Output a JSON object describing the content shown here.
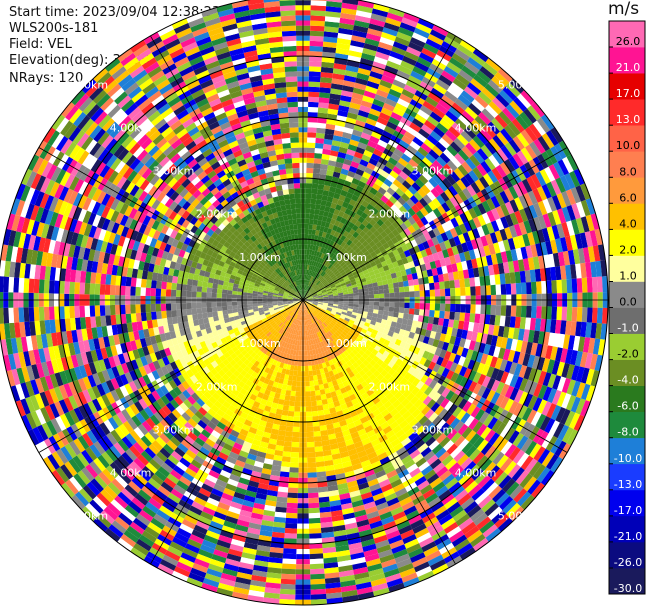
{
  "header": {
    "start_time": "Start time: 2023/09/04 12:38:23",
    "instrument": "WLS200s-181",
    "field": "Field: VEL",
    "elevation": "Elevation(deg): 35.30",
    "nrays": "NRays: 120"
  },
  "chart_data": {
    "type": "heatmap",
    "projection": "polar-ppi",
    "field": "VEL",
    "unit": "m/s",
    "nrays": 120,
    "elevation_deg": 35.3,
    "max_range_km": 5.0,
    "range_rings_km": [
      1.0,
      2.0,
      3.0,
      4.0,
      5.0
    ],
    "ring_labels": [
      "1.00km",
      "2.00km",
      "3.00km",
      "4.00km",
      "5.00km"
    ],
    "spoke_angles_deg": [
      0,
      30,
      60,
      90,
      120,
      150,
      180,
      210,
      240,
      270,
      300,
      330
    ],
    "colorbar": {
      "title": "m/s",
      "levels": [
        -30.0,
        -26.0,
        -21.0,
        -17.0,
        -13.0,
        -10.0,
        -8.0,
        -6.0,
        -4.0,
        -2.0,
        -1.0,
        0.0,
        1.0,
        2.0,
        4.0,
        6.0,
        8.0,
        10.0,
        13.0,
        17.0,
        21.0,
        26.0,
        30.0
      ],
      "tick_labels": [
        "-30.0",
        "-26.0",
        "-21.0",
        "-17.0",
        "-13.0",
        "-10.0",
        "-8.0",
        "-6.0",
        "-4.0",
        "-2.0",
        "-1.0",
        "0.0",
        "1.0",
        "2.0",
        "4.0",
        "6.0",
        "8.0",
        "10.0",
        "13.0",
        "17.0",
        "21.0",
        "26.0"
      ],
      "colors": [
        "#1a1a5c",
        "#0b0b80",
        "#0000b8",
        "#0000ee",
        "#1a3cff",
        "#1e7fd8",
        "#1e8a3c",
        "#2a7a1e",
        "#6b8e23",
        "#9acd32",
        "#6e6e6e",
        "#8a8a8a",
        "#ffff9e",
        "#ffff00",
        "#ffc000",
        "#ff9a3c",
        "#ff7f50",
        "#ff6347",
        "#ff2a2a",
        "#e60000",
        "#ff1493",
        "#ff69b4"
      ]
    },
    "noise_colors": [
      "#ff1493",
      "#ff69b4",
      "#ffff00",
      "#0000ee",
      "#1a1a5c",
      "#ff2a2a",
      "#1e8a3c",
      "#6b8e23",
      "#ffc000",
      "#1e7fd8",
      "#ffffff",
      "#8a8a8a",
      "#9acd32",
      "#ff7f50",
      "#0000b8"
    ]
  }
}
